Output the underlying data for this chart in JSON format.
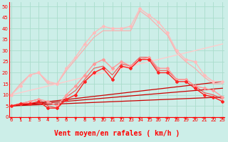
{
  "title": "",
  "xlabel": "Vent moyen/en rafales ( km/h )",
  "ylabel": "",
  "bg_color": "#cceee8",
  "grid_color": "#aaddcc",
  "x_ticks": [
    0,
    1,
    2,
    3,
    4,
    5,
    6,
    7,
    8,
    9,
    10,
    11,
    12,
    13,
    14,
    15,
    16,
    17,
    18,
    19,
    20,
    21,
    22,
    23
  ],
  "y_ticks": [
    0,
    5,
    10,
    15,
    20,
    25,
    30,
    35,
    40,
    45,
    50
  ],
  "ylim": [
    0,
    52
  ],
  "xlim": [
    -0.2,
    23.2
  ],
  "lines": [
    {
      "x": [
        0,
        1,
        2,
        3,
        4,
        5,
        6,
        7,
        8,
        9,
        10,
        11,
        12,
        13,
        14,
        15,
        16,
        17,
        18,
        19,
        20,
        21,
        22,
        23
      ],
      "y": [
        10,
        14,
        19,
        20,
        16,
        15,
        22,
        27,
        33,
        38,
        41,
        40,
        40,
        41,
        49,
        46,
        43,
        38,
        30,
        26,
        25,
        19,
        16,
        16
      ],
      "color": "#ffbbbb",
      "lw": 1.0,
      "marker": "D",
      "ms": 2.0
    },
    {
      "x": [
        0,
        1,
        2,
        3,
        4,
        5,
        6,
        7,
        8,
        9,
        10,
        11,
        12,
        13,
        14,
        15,
        16,
        17,
        18,
        19,
        20,
        21,
        22,
        23
      ],
      "y": [
        10,
        15,
        19,
        20,
        15,
        15,
        21,
        26,
        31,
        36,
        39,
        39,
        39,
        39,
        48,
        45,
        41,
        37,
        29,
        25,
        22,
        18,
        15,
        15
      ],
      "color": "#ffaaaa",
      "lw": 0.8,
      "marker": null,
      "ms": 0
    },
    {
      "x": [
        0,
        23
      ],
      "y": [
        10,
        33
      ],
      "color": "#ffcccc",
      "lw": 1.0,
      "marker": null,
      "ms": 0
    },
    {
      "x": [
        0,
        1,
        2,
        3,
        4,
        5,
        6,
        7,
        8,
        9,
        10,
        11,
        12,
        13,
        14,
        15,
        16,
        17,
        18,
        19,
        20,
        21,
        22,
        23
      ],
      "y": [
        5,
        6,
        7,
        8,
        7,
        5,
        10,
        14,
        19,
        24,
        26,
        22,
        25,
        23,
        26,
        27,
        22,
        22,
        17,
        17,
        14,
        13,
        12,
        9
      ],
      "color": "#ff9999",
      "lw": 1.0,
      "marker": "D",
      "ms": 2.0
    },
    {
      "x": [
        0,
        1,
        2,
        3,
        4,
        5,
        6,
        7,
        8,
        9,
        10,
        11,
        12,
        13,
        14,
        15,
        16,
        17,
        18,
        19,
        20,
        21,
        22,
        23
      ],
      "y": [
        5,
        6,
        6,
        7,
        4,
        4,
        8,
        10,
        16,
        20,
        22,
        17,
        23,
        22,
        26,
        26,
        20,
        20,
        16,
        16,
        13,
        10,
        9,
        7
      ],
      "color": "#ff2222",
      "lw": 1.0,
      "marker": "D",
      "ms": 2.0
    },
    {
      "x": [
        0,
        1,
        2,
        3,
        4,
        5,
        6,
        7,
        8,
        9,
        10,
        11,
        12,
        13,
        14,
        15,
        16,
        17,
        18,
        19,
        20,
        21,
        22,
        23
      ],
      "y": [
        5,
        6,
        7,
        8,
        5,
        4,
        9,
        12,
        17,
        22,
        23,
        19,
        24,
        23,
        27,
        27,
        21,
        21,
        17,
        17,
        14,
        11,
        10,
        8
      ],
      "color": "#ee5555",
      "lw": 0.8,
      "marker": null,
      "ms": 0
    },
    {
      "x": [
        0,
        23
      ],
      "y": [
        5,
        16
      ],
      "color": "#cc0000",
      "lw": 0.9,
      "marker": null,
      "ms": 0
    },
    {
      "x": [
        0,
        23
      ],
      "y": [
        5,
        13
      ],
      "color": "#cc0000",
      "lw": 0.9,
      "marker": null,
      "ms": 0
    },
    {
      "x": [
        0,
        23
      ],
      "y": [
        5,
        9
      ],
      "color": "#cc0000",
      "lw": 0.9,
      "marker": null,
      "ms": 0
    }
  ],
  "tick_fontsize": 5,
  "label_fontsize": 7
}
